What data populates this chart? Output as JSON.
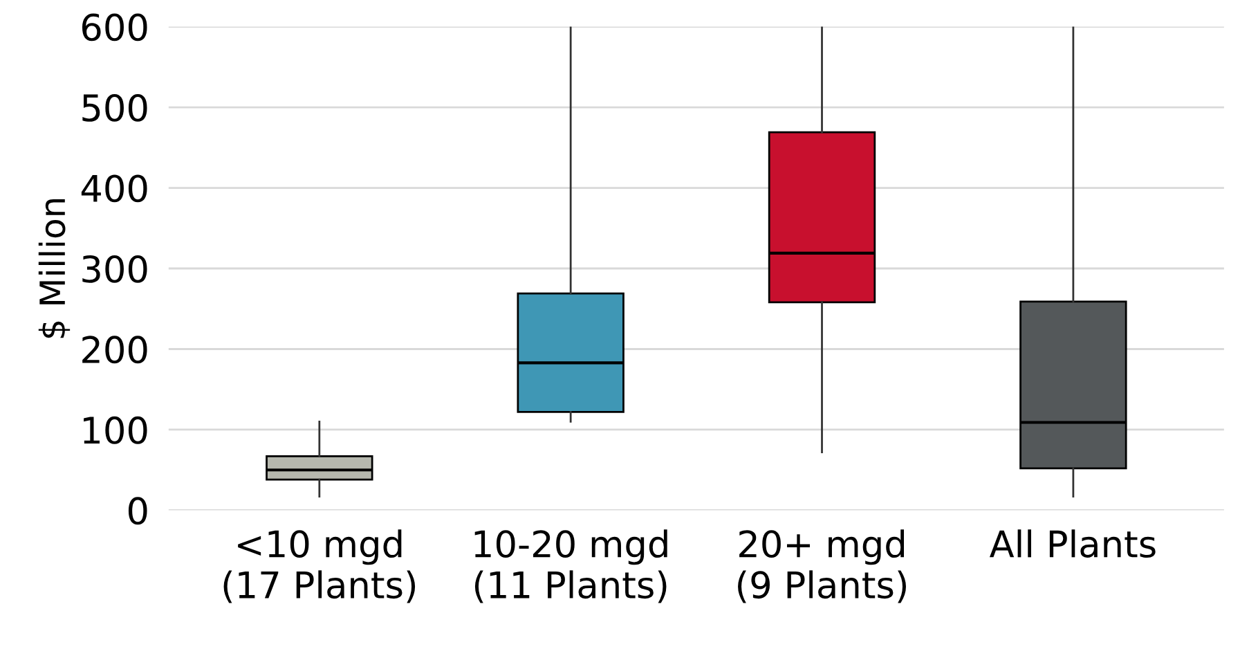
{
  "chart_data": {
    "type": "box",
    "ylabel": "$ Million",
    "categories": [
      "<10 mgd\n(17 Plants)",
      "10-20 mgd\n(11 Plants)",
      "20+ mgd\n(9 Plants)",
      "All Plants"
    ],
    "colors": [
      "#b6b8ae",
      "#3f97b5",
      "#c8102e",
      "#54585a"
    ],
    "boxes": [
      {
        "low": 17,
        "q1": 38,
        "median": 50,
        "q3": 67,
        "high": 110
      },
      {
        "low": 110,
        "q1": 122,
        "median": 183,
        "q3": 269,
        "high": 600
      },
      {
        "low": 72,
        "q1": 258,
        "median": 319,
        "q3": 469,
        "high": 600
      },
      {
        "low": 17,
        "q1": 52,
        "median": 109,
        "q3": 259,
        "high": 600
      }
    ],
    "ylim": [
      0,
      600
    ],
    "yticks": [
      0,
      100,
      200,
      300,
      400,
      500,
      600
    ],
    "grid": "y",
    "legend": false
  }
}
